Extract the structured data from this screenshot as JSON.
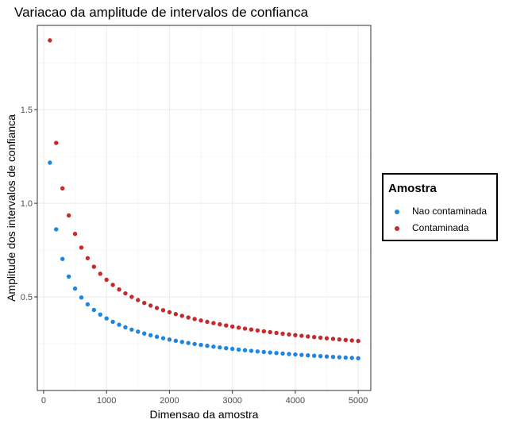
{
  "chart_data": {
    "type": "scatter",
    "title": "Variacao da amplitude de intervalos de confianca",
    "xlabel": "Dimensao da amostra",
    "ylabel": "Amplitude dos intervalos de confianca",
    "xlim": [
      -100,
      5200
    ],
    "ylim": [
      0.0,
      1.95
    ],
    "xticks": [
      0,
      1000,
      2000,
      3000,
      4000,
      5000
    ],
    "yticks": [
      0.5,
      1.0,
      1.5
    ],
    "grid": true,
    "legend_title": "Amostra",
    "legend_position": "right",
    "series": [
      {
        "name": "Nao contaminada",
        "color": "#1c86e0",
        "base": 12.17
      },
      {
        "name": "Contaminada",
        "color": "#c62a2a",
        "base": 18.7
      }
    ],
    "x_start": 100,
    "x_end": 5000,
    "x_step": 100
  }
}
